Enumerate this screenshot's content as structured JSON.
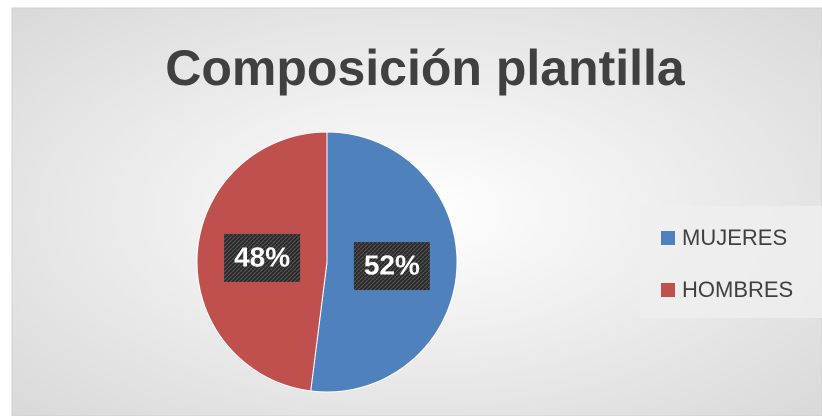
{
  "chart_data": {
    "type": "pie",
    "title": "Composición plantilla",
    "categories": [
      "MUJERES",
      "HOMBRES"
    ],
    "values": [
      52,
      48
    ],
    "value_labels": [
      "52%",
      "48%"
    ],
    "colors": [
      "#4f81bd",
      "#c0504d"
    ],
    "legend": "right"
  }
}
